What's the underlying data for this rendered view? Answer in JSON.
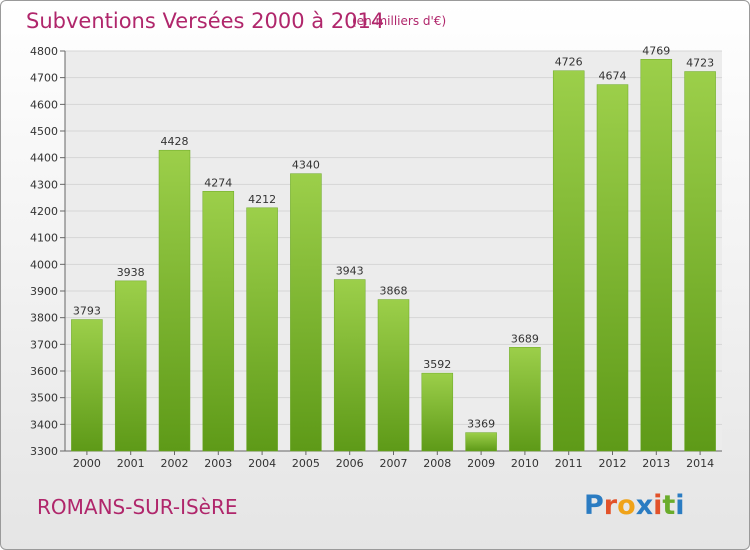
{
  "header": {
    "title": "Subventions Versées 2000 à 2014",
    "unit_note": "(en milliers d'€)"
  },
  "footer": {
    "city": "ROMANS-SUR-ISèRE",
    "logo": "Proxiti"
  },
  "colors": {
    "title": "#b0266b",
    "bar_top": "#9ccf4a",
    "bar_bottom": "#5e9a18",
    "grid": "#d6d6d6",
    "logo_letters": [
      "#2b7cc2",
      "#e2522a",
      "#f0a319",
      "#2b7cc2",
      "#e2522a",
      "#6aac2b",
      "#2b7cc2"
    ]
  },
  "chart_data": {
    "type": "bar",
    "categories": [
      "2000",
      "2001",
      "2002",
      "2003",
      "2004",
      "2005",
      "2006",
      "2007",
      "2008",
      "2009",
      "2010",
      "2011",
      "2012",
      "2013",
      "2014"
    ],
    "values": [
      3793,
      3938,
      4428,
      4274,
      4212,
      4340,
      3943,
      3868,
      3592,
      3369,
      3689,
      4726,
      4674,
      4769,
      4723
    ],
    "yticks": [
      3300,
      3400,
      3500,
      3600,
      3700,
      3800,
      3900,
      4000,
      4100,
      4200,
      4300,
      4400,
      4500,
      4600,
      4700,
      4800
    ],
    "ylim": [
      3300,
      4800
    ],
    "grid": true,
    "title": "Subventions Versées 2000 à 2014",
    "xlabel": "",
    "ylabel": ""
  }
}
